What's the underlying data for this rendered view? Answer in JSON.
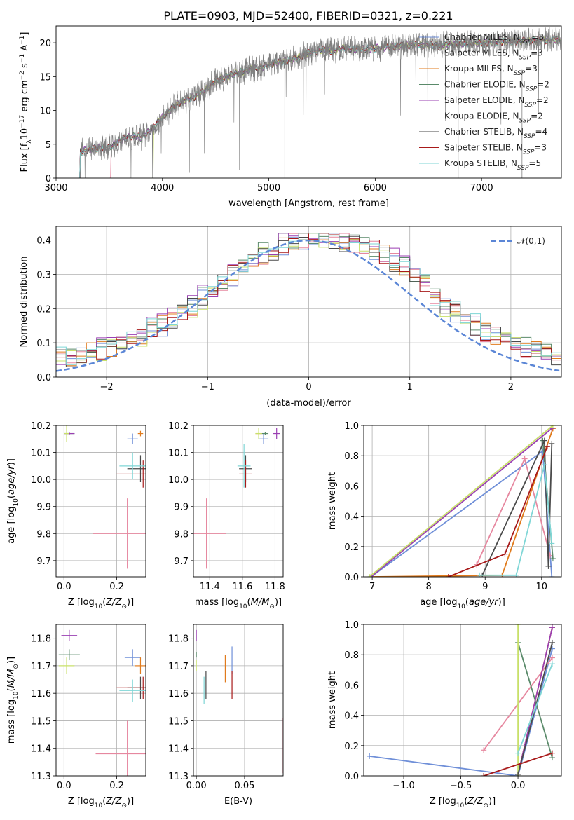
{
  "title": "PLATE=0903, MJD=52400, FIBERID=0321, z=0.221",
  "series_styles": [
    {
      "name": "Chabrier MILES, N_SSP=3",
      "color": "#6f8fd8"
    },
    {
      "name": "Salpeter MILES, N_SSP=3",
      "color": "#e6879f"
    },
    {
      "name": "Kroupa MILES, N_SSP=3",
      "color": "#e07b1d"
    },
    {
      "name": "Chabrier ELODIE, N_SSP=2",
      "color": "#5a8a6a"
    },
    {
      "name": "Salpeter ELODIE, N_SSP=2",
      "color": "#9a3fb2"
    },
    {
      "name": "Kroupa ELODIE, N_SSP=2",
      "color": "#c8e06a"
    },
    {
      "name": "Chabrier STELIB, N_SSP=4",
      "color": "#4a4a4a"
    },
    {
      "name": "Salpeter STELIB, N_SSP=3",
      "color": "#a81a1a"
    },
    {
      "name": "Kroupa STELIB, N_SSP=5",
      "color": "#7fd6d6"
    }
  ],
  "chart_data": [
    {
      "id": "spectrum",
      "type": "line",
      "xlabel": "wavelength [Angstrom, rest frame]",
      "ylabel": "Flux [f_λ10^-17 erg cm^-2 s^-1 A^-1]",
      "xlim": [
        3000,
        7750
      ],
      "ylim": [
        0,
        22.5
      ],
      "xticks": [
        3000,
        4000,
        5000,
        6000,
        7000
      ],
      "yticks": [
        0,
        5,
        10,
        15,
        20
      ],
      "data_color": "#808080",
      "continuum": {
        "x": [
          3210,
          3300,
          3400,
          3500,
          3600,
          3700,
          3800,
          3900,
          4000,
          4100,
          4200,
          4300,
          4400,
          4500,
          4600,
          4700,
          4800,
          4900,
          5000,
          5100,
          5200,
          5300,
          5400,
          5500,
          5600,
          5700,
          5800,
          5900,
          6000,
          6200,
          6400,
          6600,
          6800,
          7000,
          7200,
          7400,
          7750
        ],
        "y": [
          3.8,
          4.2,
          4.4,
          4.5,
          5.5,
          6.2,
          6.0,
          7.2,
          9.0,
          10.5,
          11.5,
          12.0,
          13.0,
          14.5,
          15.0,
          15.5,
          16.0,
          16.2,
          16.8,
          17.2,
          17.4,
          18.0,
          18.6,
          19.0,
          18.8,
          19.2,
          19.0,
          19.1,
          19.2,
          19.5,
          19.8,
          19.6,
          19.9,
          20.0,
          20.2,
          20.3,
          20.5
        ]
      },
      "legend_position": "upper right"
    },
    {
      "id": "residuals",
      "type": "bar",
      "xlabel": "(data-model)/error",
      "ylabel": "Normed distribution",
      "xlim": [
        -2.5,
        2.5
      ],
      "ylim": [
        0,
        0.44
      ],
      "xticks": [
        -2,
        -1,
        0,
        1,
        2
      ],
      "yticks": [
        0.0,
        0.1,
        0.2,
        0.3,
        0.4
      ],
      "bin_width": 0.1,
      "reference_curve": {
        "name": "𝒩(0,1)",
        "color": "#5b86d6",
        "mean": 0,
        "sigma": 1
      },
      "legend_position": "upper right"
    },
    {
      "id": "age_vs_Z",
      "type": "scatter",
      "xlabel": "Z [log10(Z/Z⊙)]",
      "ylabel": "age  [log10(age/yr)]",
      "xlim": [
        -0.03,
        0.31
      ],
      "ylim": [
        9.64,
        10.2
      ],
      "xticks": [
        0.0,
        0.2
      ],
      "yticks": [
        9.7,
        9.8,
        9.9,
        10.0,
        10.1,
        10.2
      ],
      "points": [
        {
          "s": 0,
          "x": 0.26,
          "y": 10.15,
          "ex": 0.02,
          "ey": 0.02
        },
        {
          "s": 1,
          "x": 0.24,
          "y": 9.8,
          "ex": 0.13,
          "ey": 0.13
        },
        {
          "s": 2,
          "x": 0.29,
          "y": 10.17,
          "ex": 0.01,
          "ey": 0.01
        },
        {
          "s": 3,
          "x": 0.02,
          "y": 10.17,
          "ex": 0.02,
          "ey": 0.005
        },
        {
          "s": 4,
          "x": 0.02,
          "y": 10.17,
          "ex": 0.02,
          "ey": 0.005
        },
        {
          "s": 5,
          "x": 0.01,
          "y": 10.17,
          "ex": 0.01,
          "ey": 0.03
        },
        {
          "s": 6,
          "x": 0.29,
          "y": 10.04,
          "ex": 0.05,
          "ey": 0.05
        },
        {
          "s": 7,
          "x": 0.3,
          "y": 10.02,
          "ex": 0.1,
          "ey": 0.05
        },
        {
          "s": 8,
          "x": 0.26,
          "y": 10.05,
          "ex": 0.05,
          "ey": 0.05
        }
      ]
    },
    {
      "id": "age_vs_mass",
      "type": "scatter",
      "xlabel": "mass [log10(M/M⊙)]",
      "ylabel": "",
      "xlim": [
        11.3,
        11.85
      ],
      "ylim": [
        9.64,
        10.2
      ],
      "xticks": [
        11.4,
        11.6,
        11.8
      ],
      "yticks": [
        9.7,
        9.8,
        9.9,
        10.0,
        10.1,
        10.2
      ],
      "points": [
        {
          "s": 0,
          "x": 11.73,
          "y": 10.15,
          "ex": 0.03,
          "ey": 0.02
        },
        {
          "s": 1,
          "x": 11.38,
          "y": 9.8,
          "ex": 0.12,
          "ey": 0.13
        },
        {
          "s": 2,
          "x": 11.7,
          "y": 10.17,
          "ex": 0.02,
          "ey": 0.01
        },
        {
          "s": 3,
          "x": 11.74,
          "y": 10.17,
          "ex": 0.02,
          "ey": 0.005
        },
        {
          "s": 4,
          "x": 11.81,
          "y": 10.17,
          "ex": 0.02,
          "ey": 0.02
        },
        {
          "s": 5,
          "x": 11.7,
          "y": 10.17,
          "ex": 0.02,
          "ey": 0.02
        },
        {
          "s": 6,
          "x": 11.62,
          "y": 10.04,
          "ex": 0.04,
          "ey": 0.05
        },
        {
          "s": 7,
          "x": 11.62,
          "y": 10.02,
          "ex": 0.04,
          "ey": 0.05
        },
        {
          "s": 8,
          "x": 11.61,
          "y": 10.05,
          "ex": 0.04,
          "ey": 0.08
        }
      ]
    },
    {
      "id": "weight_vs_age",
      "type": "line",
      "xlabel": "age  [log10(age/yr)]",
      "ylabel": "mass weight",
      "xlim": [
        6.85,
        10.35
      ],
      "ylim": [
        0,
        1.0
      ],
      "xticks": [
        7,
        8,
        9,
        10
      ],
      "yticks": [
        0.0,
        0.2,
        0.4,
        0.6,
        0.8,
        1.0
      ],
      "series": [
        {
          "s": 0,
          "x": [
            6.98,
            10.02,
            10.18
          ],
          "y": [
            0.0,
            0.83,
            0.0
          ]
        },
        {
          "s": 1,
          "x": [
            8.85,
            9.7,
            10.15
          ],
          "y": [
            0.08,
            0.78,
            0.14
          ]
        },
        {
          "s": 2,
          "x": [
            7.0,
            9.3,
            10.2
          ],
          "y": [
            0.0,
            0.01,
            0.98
          ]
        },
        {
          "s": 3,
          "x": [
            10.02,
            10.2
          ],
          "y": [
            0.9,
            0.12
          ]
        },
        {
          "s": 4,
          "x": [
            6.98,
            10.18
          ],
          "y": [
            0.0,
            0.98
          ]
        },
        {
          "s": 5,
          "x": [
            6.95,
            10.2
          ],
          "y": [
            0.0,
            1.0
          ]
        },
        {
          "s": 6,
          "x": [
            8.95,
            10.05,
            10.12,
            10.18
          ],
          "y": [
            0.01,
            0.9,
            0.07,
            0.88
          ]
        },
        {
          "s": 7,
          "x": [
            8.35,
            9.35,
            10.1
          ],
          "y": [
            0.0,
            0.15,
            0.86
          ]
        },
        {
          "s": 8,
          "x": [
            8.9,
            9.55,
            10.05,
            10.18
          ],
          "y": [
            0.01,
            0.01,
            0.74,
            0.22
          ]
        }
      ]
    },
    {
      "id": "mass_vs_Z",
      "type": "scatter",
      "xlabel": "Z [log10(Z/Z⊙)]",
      "ylabel": "mass [log10(M/M⊙)]",
      "xlim": [
        -0.03,
        0.31
      ],
      "ylim": [
        11.3,
        11.85
      ],
      "xticks": [
        0.0,
        0.2
      ],
      "yticks": [
        11.3,
        11.4,
        11.5,
        11.6,
        11.7,
        11.8
      ],
      "points": [
        {
          "s": 0,
          "x": 0.26,
          "y": 11.73,
          "ex": 0.03,
          "ey": 0.03
        },
        {
          "s": 1,
          "x": 0.24,
          "y": 11.38,
          "ex": 0.12,
          "ey": 0.12
        },
        {
          "s": 2,
          "x": 0.29,
          "y": 11.7,
          "ex": 0.02,
          "ey": 0.03
        },
        {
          "s": 3,
          "x": 0.02,
          "y": 11.74,
          "ex": 0.04,
          "ey": 0.02
        },
        {
          "s": 4,
          "x": 0.02,
          "y": 11.81,
          "ex": 0.03,
          "ey": 0.02
        },
        {
          "s": 5,
          "x": 0.01,
          "y": 11.7,
          "ex": 0.03,
          "ey": 0.03
        },
        {
          "s": 6,
          "x": 0.29,
          "y": 11.62,
          "ex": 0.05,
          "ey": 0.04
        },
        {
          "s": 7,
          "x": 0.3,
          "y": 11.62,
          "ex": 0.1,
          "ey": 0.04
        },
        {
          "s": 8,
          "x": 0.26,
          "y": 11.61,
          "ex": 0.05,
          "ey": 0.04
        }
      ]
    },
    {
      "id": "mass_vs_ebv",
      "type": "scatter",
      "xlabel": "E(B-V)",
      "ylabel": "",
      "xlim": [
        -0.003,
        0.09
      ],
      "ylim": [
        11.3,
        11.85
      ],
      "xticks": [
        0.0,
        0.05
      ],
      "yticks": [
        11.3,
        11.4,
        11.5,
        11.6,
        11.7,
        11.8
      ],
      "points": [
        {
          "s": 0,
          "x": 0.037,
          "y": 11.72,
          "ex": 0,
          "ey": 0.05
        },
        {
          "s": 1,
          "x": 0.089,
          "y": 11.41,
          "ex": 0,
          "ey": 0.1
        },
        {
          "s": 2,
          "x": 0.03,
          "y": 11.69,
          "ex": 0,
          "ey": 0.05
        },
        {
          "s": 3,
          "x": 0.0,
          "y": 11.74,
          "ex": 0,
          "ey": 0.01
        },
        {
          "s": 4,
          "x": 0.0,
          "y": 11.81,
          "ex": 0,
          "ey": 0.02
        },
        {
          "s": 5,
          "x": 0.0,
          "y": 11.7,
          "ex": 0,
          "ey": 0.02
        },
        {
          "s": 6,
          "x": 0.01,
          "y": 11.63,
          "ex": 0,
          "ey": 0.05
        },
        {
          "s": 7,
          "x": 0.037,
          "y": 11.63,
          "ex": 0,
          "ey": 0.05
        },
        {
          "s": 8,
          "x": 0.008,
          "y": 11.61,
          "ex": 0,
          "ey": 0.05
        }
      ]
    },
    {
      "id": "weight_vs_Z",
      "type": "line",
      "xlabel": "Z [log10(Z/Z⊙)]",
      "ylabel": "mass weight",
      "xlim": [
        -1.35,
        0.38
      ],
      "ylim": [
        0,
        1.0
      ],
      "xticks": [
        -1.0,
        -0.5,
        0.0
      ],
      "yticks": [
        0.0,
        0.2,
        0.4,
        0.6,
        0.8,
        1.0
      ],
      "series": [
        {
          "s": 0,
          "x": [
            -1.3,
            0.0,
            0.3
          ],
          "y": [
            0.13,
            0.0,
            0.84
          ]
        },
        {
          "s": 1,
          "x": [
            -0.3,
            0.3
          ],
          "y": [
            0.17,
            0.78
          ]
        },
        {
          "s": 2,
          "x": [
            0.0,
            0.3
          ],
          "y": [
            0.01,
            0.98
          ]
        },
        {
          "s": 3,
          "x": [
            0.0,
            0.3
          ],
          "y": [
            0.88,
            0.12
          ]
        },
        {
          "s": 4,
          "x": [
            0.0,
            0.3
          ],
          "y": [
            0.01,
            0.98
          ]
        },
        {
          "s": 5,
          "x": [
            0.0,
            0.0
          ],
          "y": [
            0.0,
            1.0
          ]
        },
        {
          "s": 6,
          "x": [
            0.0,
            0.3
          ],
          "y": [
            0.01,
            0.88
          ]
        },
        {
          "s": 7,
          "x": [
            -0.3,
            0.3
          ],
          "y": [
            0.0,
            0.15
          ]
        },
        {
          "s": 8,
          "x": [
            0.0,
            0.3
          ],
          "y": [
            0.15,
            0.74
          ]
        }
      ]
    }
  ]
}
